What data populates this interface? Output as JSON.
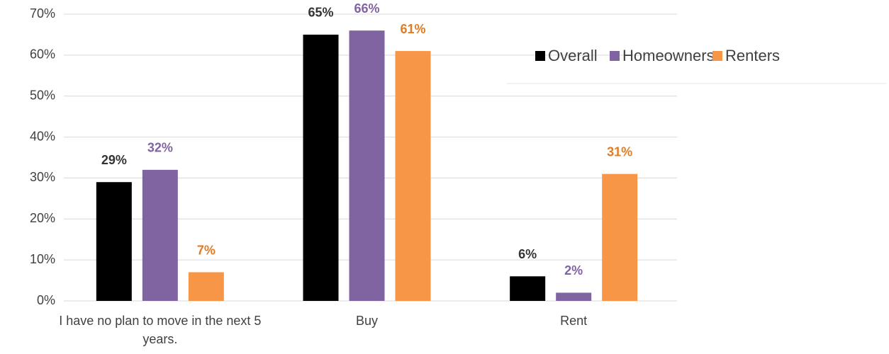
{
  "chart_data": {
    "type": "bar",
    "categories": [
      "I have no plan to move in the next 5 years.",
      "Buy",
      "Rent"
    ],
    "series": [
      {
        "name": "Overall",
        "color": "#000000",
        "label_color": "#333333",
        "values": [
          29,
          65,
          6
        ],
        "value_labels": [
          "29%",
          "65%",
          "6%"
        ]
      },
      {
        "name": "Homeowners",
        "color": "#8064a2",
        "label_color": "#8064a2",
        "values": [
          32,
          66,
          2
        ],
        "value_labels": [
          "32%",
          "66%",
          "2%"
        ]
      },
      {
        "name": "Renters",
        "color": "#f79646",
        "label_color": "#e07b26",
        "values": [
          7,
          61,
          31
        ],
        "value_labels": [
          "7%",
          "61%",
          "31%"
        ]
      }
    ],
    "ylim": [
      0,
      70
    ],
    "yticks": [
      {
        "value": 0,
        "label": "0%"
      },
      {
        "value": 10,
        "label": "10%"
      },
      {
        "value": 20,
        "label": "20%"
      },
      {
        "value": 30,
        "label": "30%"
      },
      {
        "value": 40,
        "label": "40%"
      },
      {
        "value": 50,
        "label": "50%"
      },
      {
        "value": 60,
        "label": "60%"
      },
      {
        "value": 70,
        "label": "70%"
      }
    ],
    "grid": true,
    "legend": "top-right"
  }
}
